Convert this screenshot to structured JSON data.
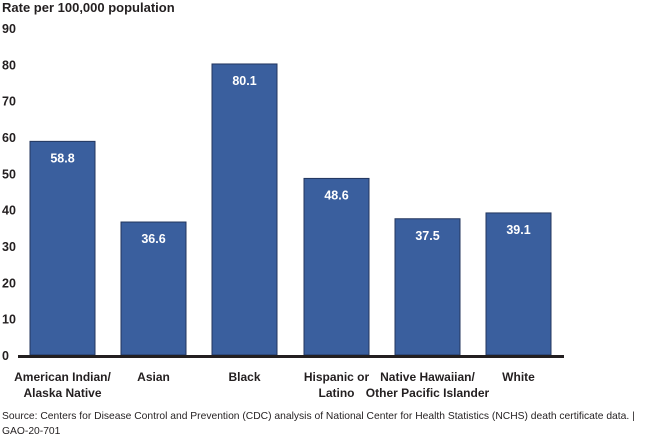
{
  "chart_data": {
    "type": "bar",
    "ylabel": "Rate per 100,000 population",
    "categories": [
      [
        "American Indian/",
        "Alaska Native"
      ],
      [
        "Asian"
      ],
      [
        "Black"
      ],
      [
        "Hispanic or",
        "Latino"
      ],
      [
        "Native Hawaiian/",
        "Other Pacific Islander"
      ],
      [
        "White"
      ]
    ],
    "values": [
      58.8,
      36.6,
      80.1,
      48.6,
      37.5,
      39.1
    ],
    "value_labels": [
      "58.8",
      "36.6",
      "80.1",
      "48.6",
      "37.5",
      "39.1"
    ],
    "ylim": [
      0,
      90
    ],
    "yticks": [
      "0",
      "10",
      "20",
      "30",
      "40",
      "50",
      "60",
      "70",
      "80",
      "90"
    ],
    "grid": false,
    "bar_color": "#3a5f9e",
    "bar_border": "#23365e"
  },
  "source": "Source: Centers for Disease Control and Prevention (CDC) analysis of National Center for Health Statistics (NCHS) death certificate data.  |  GAO-20-701"
}
